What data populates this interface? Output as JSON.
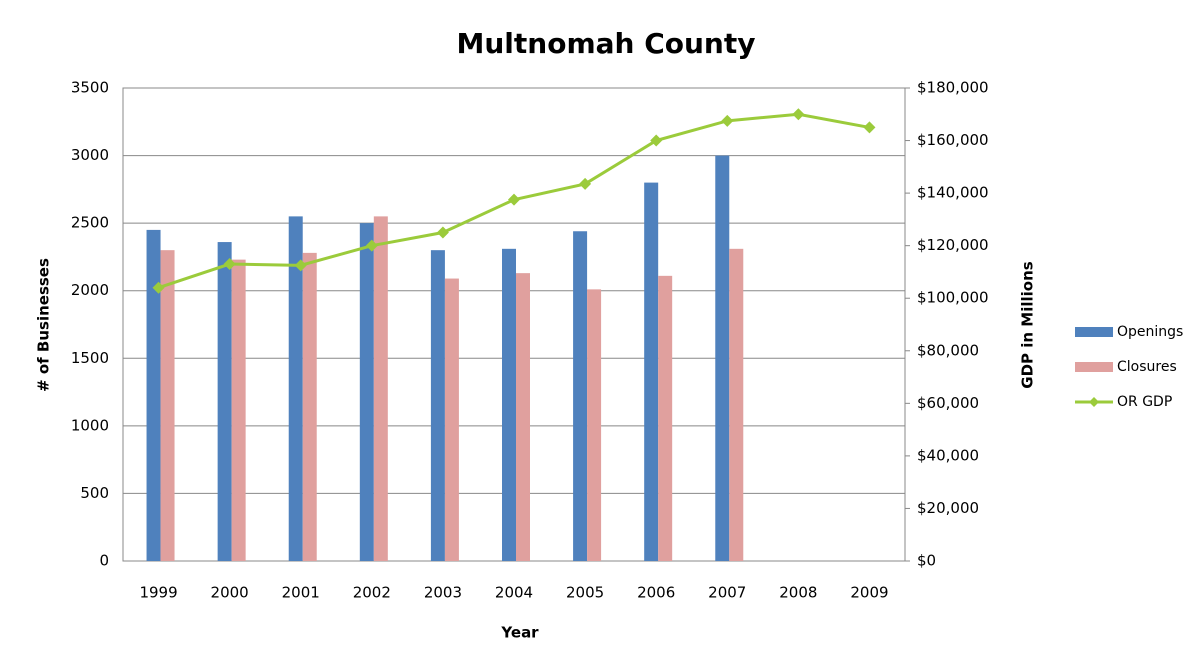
{
  "chart_data": {
    "type": "bar_line",
    "title": "Multnomah County",
    "x_label": "Year",
    "y_label": "# of Businesses",
    "y2_label": "GDP in Millions",
    "categories": [
      "1999",
      "2000",
      "2001",
      "2002",
      "2003",
      "2004",
      "2005",
      "2006",
      "2007",
      "2008",
      "2009"
    ],
    "series": [
      {
        "name": "Openings",
        "color": "#4f81bd",
        "type": "bar",
        "values": [
          2450,
          2360,
          2550,
          2500,
          2300,
          2310,
          2440,
          2800,
          3000,
          null,
          null
        ]
      },
      {
        "name": "Closures",
        "color": "#e0a09e",
        "type": "bar",
        "values": [
          2300,
          2230,
          2280,
          2550,
          2090,
          2130,
          2010,
          2110,
          2310,
          null,
          null
        ]
      },
      {
        "name": "OR GDP",
        "color": "#9bcb3b",
        "type": "line",
        "axis": "y2",
        "values": [
          104000,
          113000,
          112500,
          120000,
          125000,
          137500,
          143500,
          160000,
          167500,
          170000,
          165000
        ]
      }
    ],
    "ylim": [
      0,
      3500
    ],
    "yticks": [
      0,
      500,
      1000,
      1500,
      2000,
      2500,
      3000,
      3500
    ],
    "y2lim": [
      0,
      180000
    ],
    "y2ticks": [
      {
        "value": 0,
        "label": "$0"
      },
      {
        "value": 20000,
        "label": "$20,000"
      },
      {
        "value": 40000,
        "label": "$40,000"
      },
      {
        "value": 60000,
        "label": "$60,000"
      },
      {
        "value": 80000,
        "label": "$80,000"
      },
      {
        "value": 100000,
        "label": "$100,000"
      },
      {
        "value": 120000,
        "label": "$120,000"
      },
      {
        "value": 140000,
        "label": "$140,000"
      },
      {
        "value": 160000,
        "label": "$160,000"
      },
      {
        "value": 180000,
        "label": "$180,000"
      }
    ],
    "grid": true,
    "legend": "right"
  }
}
